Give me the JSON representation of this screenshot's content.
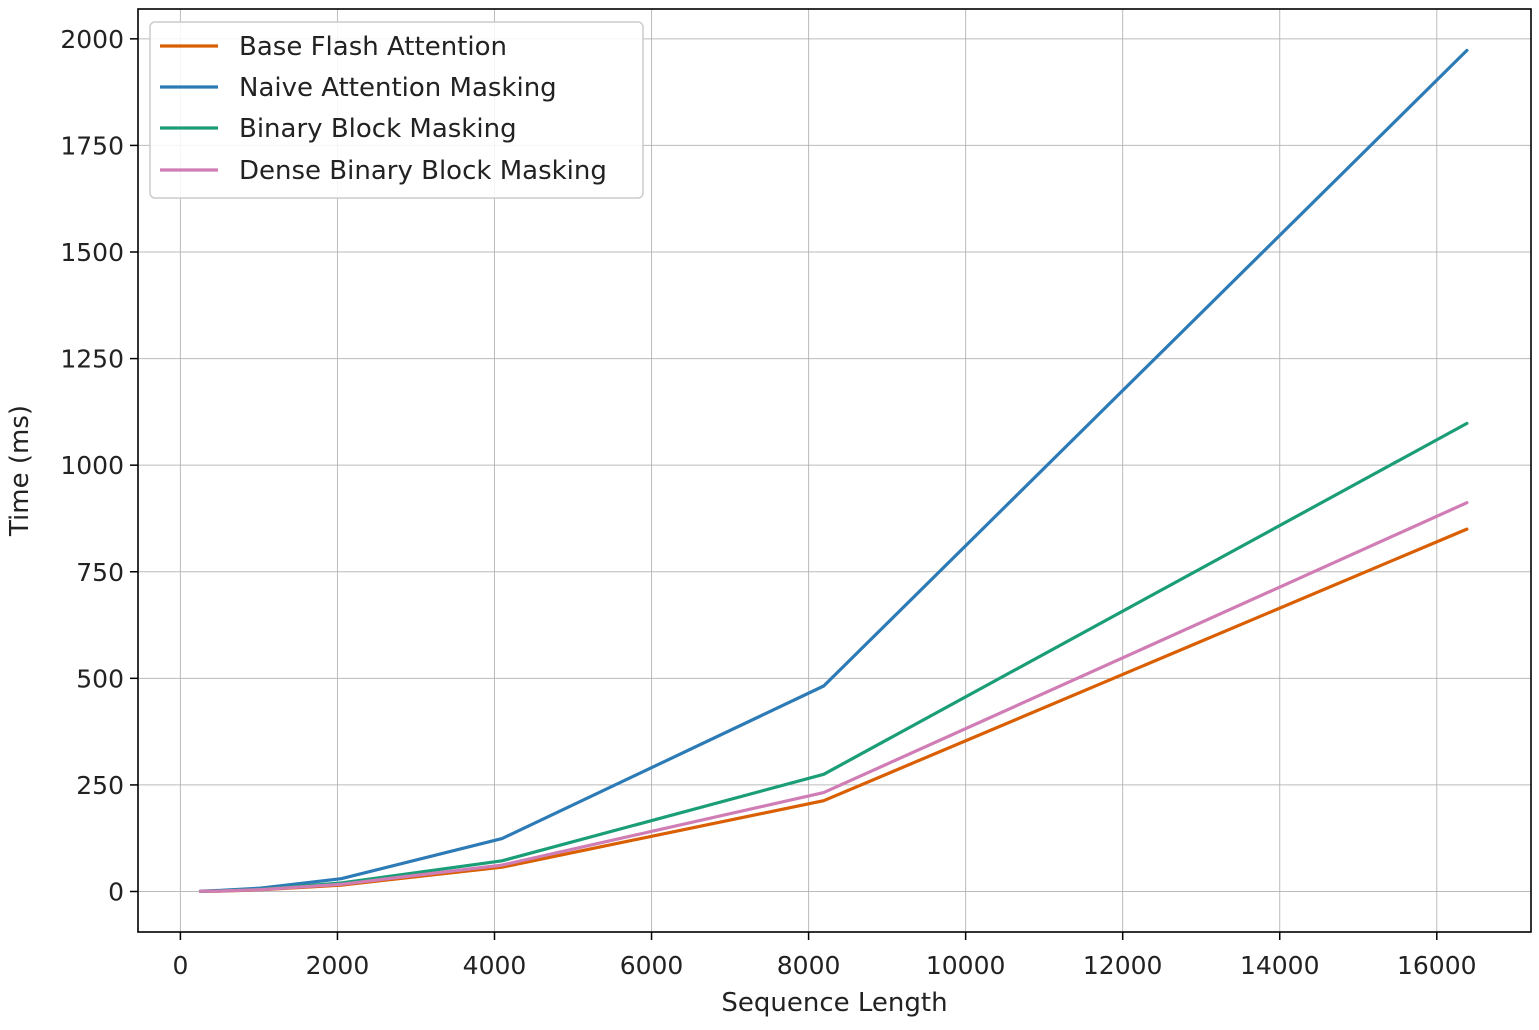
{
  "chart_data": {
    "type": "line",
    "title": "",
    "xlabel": "Sequence Length",
    "ylabel": "Time (ms)",
    "xlim": [
      -540,
      17200
    ],
    "ylim": [
      -95,
      2070
    ],
    "xticks": [
      0,
      2000,
      4000,
      6000,
      8000,
      10000,
      12000,
      14000,
      16000
    ],
    "yticks": [
      0,
      250,
      500,
      750,
      1000,
      1250,
      1500,
      1750,
      2000
    ],
    "grid": true,
    "legend_position": "top-left",
    "x": [
      256,
      512,
      1024,
      2048,
      4096,
      8192,
      16384
    ],
    "series": [
      {
        "name": "Base Flash Attention",
        "color": "#d95f02",
        "values": [
          0.5,
          1,
          4,
          15,
          57,
          213,
          850
        ]
      },
      {
        "name": "Naive Attention Masking",
        "color": "#2c7bb6",
        "values": [
          1,
          2.5,
          8,
          30,
          124,
          482,
          1973
        ]
      },
      {
        "name": "Binary Block Masking",
        "color": "#1b9e77",
        "values": [
          0.7,
          1.3,
          5,
          20,
          72,
          275,
          1098
        ]
      },
      {
        "name": "Dense Binary Block Masking",
        "color": "#d17db5",
        "values": [
          0.6,
          1.1,
          4.5,
          17,
          62,
          232,
          912
        ]
      }
    ]
  }
}
